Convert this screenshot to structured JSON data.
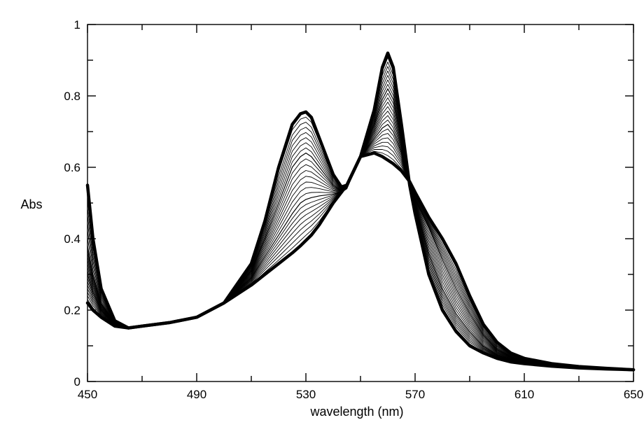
{
  "chart_data": {
    "type": "line",
    "title": "",
    "xlabel": "wavelength (nm)",
    "ylabel": "Abs",
    "xlim": [
      450,
      650
    ],
    "ylim": [
      0,
      1
    ],
    "xticks": [
      450,
      490,
      530,
      570,
      610,
      650
    ],
    "xtick_labels": [
      "450",
      "490",
      "530",
      "570",
      "610",
      "650"
    ],
    "yticks": [
      0,
      0.2,
      0.4,
      0.6,
      0.8,
      1
    ],
    "ytick_labels": [
      "0",
      "0.2",
      "0.4",
      "0.6",
      "0.8",
      "1"
    ],
    "grid": false,
    "legend": "none",
    "line_color": "#000000",
    "series": [
      {
        "values_note": "initial spectrum",
        "x": [
          450,
          452,
          455,
          460,
          465,
          470,
          480,
          490,
          500,
          510,
          515,
          520,
          525,
          528,
          530,
          532,
          535,
          540,
          543,
          545,
          550,
          555,
          558,
          560,
          562,
          565,
          568,
          570,
          575,
          580,
          585,
          590,
          595,
          600,
          605,
          610,
          620,
          630,
          640,
          650
        ],
        "y": [
          0.55,
          0.4,
          0.26,
          0.17,
          0.15,
          0.155,
          0.165,
          0.18,
          0.22,
          0.33,
          0.45,
          0.6,
          0.72,
          0.75,
          0.755,
          0.74,
          0.68,
          0.58,
          0.545,
          0.55,
          0.63,
          0.76,
          0.88,
          0.92,
          0.88,
          0.72,
          0.55,
          0.47,
          0.3,
          0.2,
          0.14,
          0.1,
          0.08,
          0.065,
          0.055,
          0.05,
          0.043,
          0.038,
          0.035,
          0.033
        ]
      },
      {
        "x": [
          450,
          452,
          455,
          460,
          465,
          470,
          480,
          490,
          500,
          510,
          515,
          520,
          525,
          528,
          530,
          532,
          535,
          540,
          543,
          545,
          550,
          555,
          558,
          560,
          562,
          565,
          568,
          570,
          575,
          580,
          585,
          590,
          595,
          600,
          605,
          610,
          620,
          630,
          640,
          650
        ],
        "y": [
          0.38,
          0.3,
          0.22,
          0.165,
          0.15,
          0.155,
          0.165,
          0.18,
          0.22,
          0.31,
          0.4,
          0.5,
          0.6,
          0.63,
          0.64,
          0.63,
          0.6,
          0.55,
          0.535,
          0.545,
          0.63,
          0.72,
          0.79,
          0.82,
          0.79,
          0.68,
          0.55,
          0.49,
          0.36,
          0.26,
          0.19,
          0.14,
          0.1,
          0.075,
          0.062,
          0.054,
          0.045,
          0.039,
          0.035,
          0.033
        ]
      },
      {
        "x": [
          450,
          452,
          455,
          460,
          465,
          470,
          480,
          490,
          500,
          510,
          515,
          520,
          525,
          528,
          530,
          532,
          535,
          540,
          543,
          545,
          550,
          555,
          558,
          560,
          562,
          565,
          568,
          570,
          575,
          580,
          585,
          590,
          595,
          600,
          605,
          610,
          620,
          630,
          640,
          650
        ],
        "y": [
          0.3,
          0.25,
          0.2,
          0.16,
          0.15,
          0.155,
          0.165,
          0.18,
          0.22,
          0.29,
          0.35,
          0.41,
          0.47,
          0.5,
          0.51,
          0.515,
          0.52,
          0.525,
          0.53,
          0.54,
          0.63,
          0.68,
          0.71,
          0.72,
          0.7,
          0.64,
          0.55,
          0.51,
          0.43,
          0.34,
          0.26,
          0.19,
          0.13,
          0.09,
          0.07,
          0.058,
          0.047,
          0.04,
          0.036,
          0.033
        ]
      },
      {
        "values_note": "final spectrum",
        "x": [
          450,
          452,
          455,
          460,
          465,
          470,
          480,
          490,
          500,
          510,
          515,
          520,
          525,
          528,
          530,
          532,
          535,
          540,
          543,
          545,
          550,
          555,
          558,
          560,
          562,
          565,
          568,
          570,
          575,
          580,
          585,
          590,
          595,
          600,
          605,
          610,
          620,
          630,
          640,
          650
        ],
        "y": [
          0.22,
          0.2,
          0.18,
          0.155,
          0.15,
          0.155,
          0.165,
          0.18,
          0.22,
          0.27,
          0.3,
          0.33,
          0.36,
          0.38,
          0.395,
          0.41,
          0.44,
          0.5,
          0.53,
          0.55,
          0.63,
          0.64,
          0.63,
          0.62,
          0.61,
          0.59,
          0.56,
          0.53,
          0.46,
          0.4,
          0.33,
          0.24,
          0.16,
          0.11,
          0.08,
          0.065,
          0.05,
          0.042,
          0.037,
          0.033
        ]
      }
    ]
  }
}
